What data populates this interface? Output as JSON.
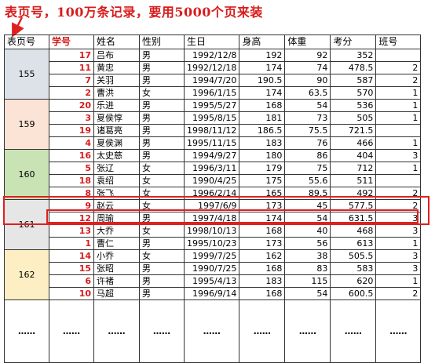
{
  "title": "表页号，100万条记录，要用5000个页来装",
  "colors": {
    "accent_red": "#d81c1c",
    "highlight_box": "#e02020"
  },
  "headers": [
    "表页号",
    "学号",
    "姓名",
    "性别",
    "生日",
    "身高",
    "体重",
    "考分",
    "班号"
  ],
  "groups": [
    {
      "page": "155",
      "color": "#dde1e8",
      "rows": [
        [
          "17",
          "吕布",
          "男",
          "1992/12/8",
          "192",
          "92",
          "352",
          ""
        ],
        [
          "11",
          "黄忠",
          "男",
          "1992/12/18",
          "174",
          "74",
          "478.5",
          "2"
        ],
        [
          "7",
          "关羽",
          "男",
          "1994/7/20",
          "190.5",
          "90",
          "587",
          "2"
        ],
        [
          "2",
          "曹洪",
          "女",
          "1996/1/15",
          "174",
          "63.5",
          "570",
          "1"
        ]
      ]
    },
    {
      "page": "159",
      "color": "#fbe3d6",
      "rows": [
        [
          "20",
          "乐进",
          "男",
          "1995/5/27",
          "168",
          "54",
          "536",
          "1"
        ],
        [
          "3",
          "夏侯惇",
          "男",
          "1995/8/15",
          "181",
          "73",
          "505",
          "1"
        ],
        [
          "19",
          "诸葛亮",
          "男",
          "1998/11/12",
          "186.5",
          "75.5",
          "721.5",
          ""
        ],
        [
          "4",
          "夏侯渊",
          "男",
          "1995/11/15",
          "183",
          "76",
          "466",
          "1"
        ]
      ]
    },
    {
      "page": "160",
      "color": "#c9e3b4",
      "rows": [
        [
          "16",
          "太史慈",
          "男",
          "1994/9/27",
          "180",
          "86",
          "404",
          "3"
        ],
        [
          "5",
          "张辽",
          "女",
          "1996/3/11",
          "179",
          "75",
          "712",
          "1"
        ],
        [
          "18",
          "袁绍",
          "女",
          "1990/4/25",
          "175",
          "55.6",
          "511",
          ""
        ],
        [
          "8",
          "张飞",
          "女",
          "1996/2/14",
          "165",
          "89.5",
          "492",
          "2"
        ]
      ]
    },
    {
      "page": "161",
      "color": "#e6e6e6",
      "rows": [
        [
          "9",
          "赵云",
          "女",
          "1997/6/9",
          "173",
          "45",
          "577.5",
          "2"
        ],
        [
          "12",
          "周瑜",
          "男",
          "1997/4/18",
          "174",
          "54",
          "631.5",
          "3"
        ],
        [
          "13",
          "大乔",
          "女",
          "1998/10/13",
          "168",
          "40",
          "468",
          "3"
        ],
        [
          "1",
          "曹仁",
          "男",
          "1995/10/23",
          "173",
          "56",
          "613",
          "1"
        ]
      ]
    },
    {
      "page": "162",
      "color": "#fdefc3",
      "rows": [
        [
          "14",
          "小乔",
          "女",
          "1999/7/25",
          "162",
          "38",
          "505.5",
          "3"
        ],
        [
          "15",
          "张昭",
          "男",
          "1990/7/25",
          "168",
          "83",
          "583",
          "3"
        ],
        [
          "6",
          "许褚",
          "男",
          "1995/4/13",
          "183",
          "115",
          "620",
          "1"
        ],
        [
          "10",
          "马超",
          "男",
          "1996/9/14",
          "168",
          "54",
          "600.5",
          "2"
        ]
      ]
    }
  ],
  "ellipsis": "……"
}
